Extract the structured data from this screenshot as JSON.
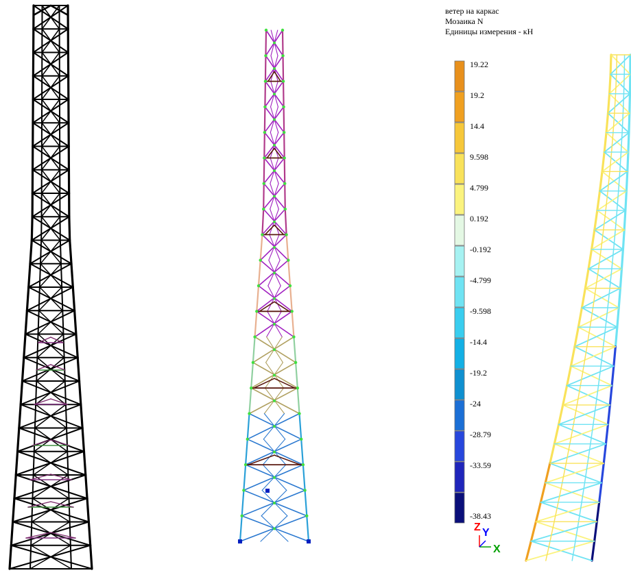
{
  "header": {
    "line1": "ветер на каркас",
    "line2": "Мозаика N",
    "line3": "Единицы измерения - кН"
  },
  "legend": {
    "entries": [
      {
        "label": "19.22",
        "color": "#e8901c"
      },
      {
        "label": "19.2",
        "color": "#f0a020"
      },
      {
        "label": "14.4",
        "color": "#f6c73a"
      },
      {
        "label": "9.598",
        "color": "#f9e25a"
      },
      {
        "label": "4.799",
        "color": "#fbf37e"
      },
      {
        "label": "0.192",
        "color": "#e4f8e4"
      },
      {
        "label": "-0.192",
        "color": "#a6f2f2"
      },
      {
        "label": "-4.799",
        "color": "#6fe3f3"
      },
      {
        "label": "-9.598",
        "color": "#39cdef"
      },
      {
        "label": "-14.4",
        "color": "#13b0e5"
      },
      {
        "label": "-19.2",
        "color": "#0f90d0"
      },
      {
        "label": "-24",
        "color": "#1b6fd6"
      },
      {
        "label": "-28.79",
        "color": "#2747dd"
      },
      {
        "label": "-33.59",
        "color": "#1f25bb"
      },
      {
        "label": "-38.43",
        "color": "#0a0f7a"
      }
    ]
  },
  "axes_triad": {
    "z": "Z",
    "y": "Y",
    "x": "X",
    "z_color": "#ff0000",
    "y_color": "#0000ff",
    "x_color": "#00a000"
  },
  "colors": {
    "model_black": "#000000",
    "purple": "#a020c0",
    "magenta": "#b03a8a",
    "dark_brown": "#5a1a10",
    "peach": "#e8b090",
    "node_green": "#40e040",
    "support_blue": "#0020c0"
  }
}
